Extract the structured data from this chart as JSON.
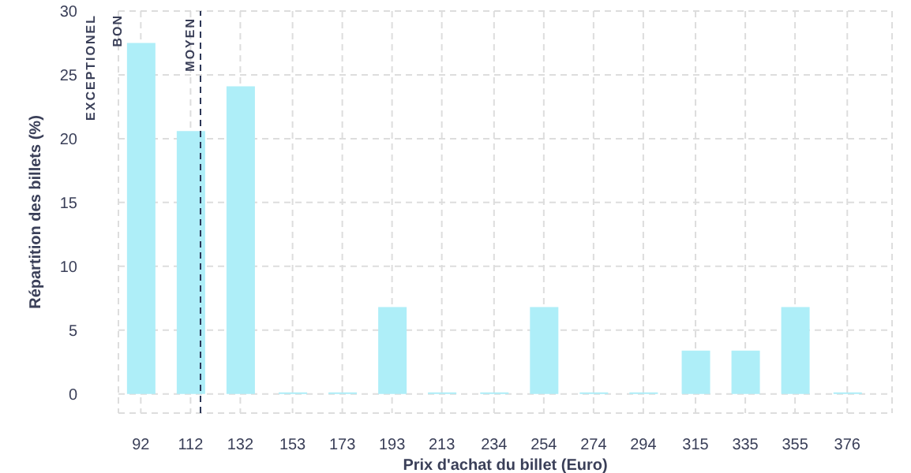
{
  "chart_data": {
    "type": "bar",
    "xlabel": "Prix d'achat du billet (Euro)",
    "ylabel": "Répartition des billets (%)",
    "x": [
      92,
      112,
      132,
      153,
      173,
      193,
      213,
      234,
      254,
      274,
      294,
      315,
      335,
      355,
      376
    ],
    "values": [
      27.5,
      20.6,
      24.1,
      0,
      0,
      6.8,
      0,
      0,
      6.8,
      0,
      0,
      3.4,
      3.4,
      6.8,
      0
    ],
    "color": "#aeeef8",
    "xlim": [
      83,
      394
    ],
    "xticks": [
      92,
      112,
      132,
      153,
      173,
      193,
      213,
      234,
      254,
      274,
      294,
      315,
      335,
      355,
      376
    ],
    "ylim": [
      -1.5,
      30
    ],
    "yticks": [
      0,
      5,
      10,
      15,
      20,
      25,
      30
    ],
    "grid": true,
    "ref_lines": [
      {
        "axis": "x",
        "value": 116,
        "label": "MOYEN",
        "color": "#2b3556",
        "line_style": "dashed"
      }
    ],
    "annotations": [
      "EXCEPTIONEL",
      "BON"
    ]
  }
}
